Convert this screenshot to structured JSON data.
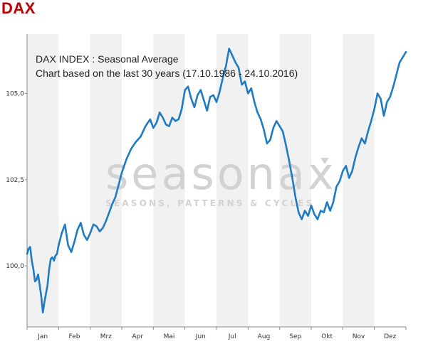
{
  "header": {
    "title": "DAX"
  },
  "colors": {
    "line": "#1f7bc4",
    "title": "#c00000",
    "band": "#f1f1f1"
  },
  "watermark": {
    "brand": "seasonax",
    "tagline": "SEASONS, PATTERNS & CYCLES"
  },
  "chart_data": {
    "type": "line",
    "title": "DAX INDEX : Seasonal Average",
    "subtitle": "Chart based on the last 30 years (17.10.1986 - 24.10.2016)",
    "xlabel": "",
    "ylabel": "",
    "categories": [
      "Jan",
      "Feb",
      "Mrz",
      "Apr",
      "Mai",
      "Jun",
      "Jul",
      "Aug",
      "Sep",
      "Okt",
      "Nov",
      "Dez"
    ],
    "yticks": [
      100.0,
      102.5,
      105.0
    ],
    "ytick_labels": [
      "100,0",
      "102,5",
      "105,0"
    ],
    "ylim": [
      98.231,
      106.72
    ],
    "xlim": [
      0,
      12
    ],
    "grid": "alternating month bands",
    "series": [
      {
        "x": [
          0.0,
          0.05,
          0.1,
          0.15,
          0.2,
          0.25,
          0.3,
          0.35,
          0.4,
          0.45,
          0.5,
          0.55,
          0.6,
          0.65,
          0.7,
          0.75,
          0.8,
          0.85,
          0.9,
          0.95,
          1.0,
          1.1,
          1.2,
          1.3,
          1.4,
          1.5,
          1.6,
          1.7,
          1.8,
          1.9,
          2.0,
          2.1,
          2.2,
          2.3,
          2.4,
          2.5,
          2.6,
          2.7,
          2.8,
          2.9,
          3.0,
          3.15,
          3.3,
          3.45,
          3.6,
          3.75,
          3.9,
          4.0,
          4.1,
          4.2,
          4.3,
          4.4,
          4.5,
          4.6,
          4.7,
          4.8,
          4.9,
          5.0,
          5.1,
          5.2,
          5.3,
          5.4,
          5.5,
          5.6,
          5.7,
          5.8,
          5.9,
          6.0,
          6.1,
          6.2,
          6.3,
          6.4,
          6.5,
          6.6,
          6.7,
          6.8,
          6.9,
          7.0,
          7.1,
          7.2,
          7.3,
          7.4,
          7.5,
          7.6,
          7.7,
          7.8,
          7.9,
          8.0,
          8.1,
          8.2,
          8.3,
          8.4,
          8.5,
          8.6,
          8.7,
          8.8,
          8.9,
          9.0,
          9.1,
          9.2,
          9.3,
          9.4,
          9.5,
          9.6,
          9.7,
          9.8,
          9.9,
          10.0,
          10.1,
          10.2,
          10.3,
          10.4,
          10.5,
          10.6,
          10.7,
          10.8,
          10.9,
          11.0,
          11.1,
          11.2,
          11.3,
          11.4,
          11.5,
          11.6,
          11.7,
          11.8,
          11.9,
          12.0
        ],
        "values": [
          100.35,
          100.5,
          100.55,
          100.15,
          99.9,
          99.55,
          99.6,
          99.75,
          99.45,
          99.1,
          98.65,
          98.95,
          99.2,
          99.45,
          99.9,
          100.2,
          100.25,
          100.15,
          100.3,
          100.35,
          100.6,
          100.95,
          101.2,
          100.6,
          100.4,
          100.7,
          101.05,
          101.25,
          100.9,
          100.75,
          100.95,
          101.2,
          101.15,
          101.0,
          101.1,
          101.3,
          101.55,
          101.8,
          102.0,
          102.35,
          102.7,
          103.1,
          103.4,
          103.6,
          103.75,
          104.05,
          104.25,
          104.0,
          104.15,
          104.45,
          104.3,
          104.1,
          104.05,
          104.3,
          104.2,
          104.25,
          104.55,
          105.1,
          105.2,
          104.85,
          104.6,
          104.95,
          105.1,
          104.8,
          104.5,
          104.9,
          104.95,
          104.75,
          105.05,
          105.45,
          105.8,
          106.3,
          106.1,
          105.9,
          105.75,
          105.25,
          105.35,
          105.0,
          105.15,
          104.75,
          104.45,
          104.25,
          103.95,
          103.55,
          103.65,
          104.0,
          104.2,
          104.05,
          103.9,
          103.5,
          103.05,
          102.55,
          102.0,
          101.55,
          101.35,
          101.6,
          101.45,
          101.75,
          101.5,
          101.35,
          101.6,
          101.55,
          101.85,
          101.6,
          101.85,
          102.3,
          102.45,
          102.75,
          102.9,
          102.55,
          102.75,
          103.15,
          103.45,
          103.7,
          103.55,
          103.9,
          104.2,
          104.55,
          105.0,
          104.85,
          104.35,
          104.75,
          104.9,
          105.2,
          105.55,
          105.9,
          106.05,
          106.2
        ]
      }
    ]
  }
}
